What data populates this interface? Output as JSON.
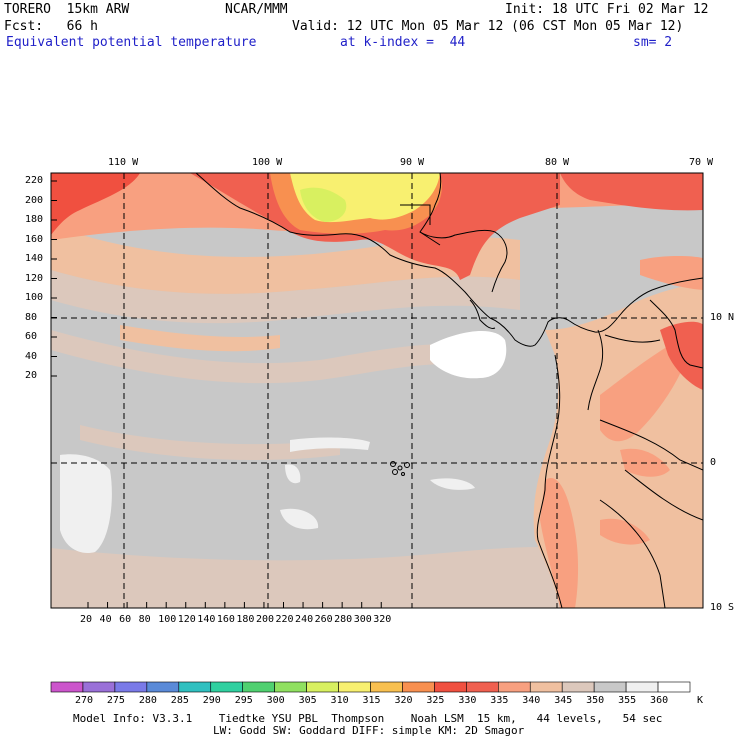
{
  "header": {
    "model": "TORERO  15km ARW",
    "org": "NCAR/MMM",
    "init": "Init: 18 UTC Fri 02 Mar 12",
    "fcst": "Fcst:   66 h",
    "valid": "Valid: 12 UTC Mon 05 Mar 12 (06 CST Mon 05 Mar 12)",
    "field": "Equivalent potential temperature",
    "level": "at k-index =  44",
    "smooth": "sm= 2"
  },
  "map": {
    "lon_labels": [
      "110 W",
      "100 W",
      "90 W",
      "80 W",
      "70 W"
    ],
    "lat_labels": [
      "10 N",
      "0",
      "10 S"
    ],
    "y_ticks": [
      "220",
      "200",
      "180",
      "160",
      "140",
      "120",
      "100",
      "80",
      "60",
      "40",
      "20"
    ],
    "x_ticks": [
      "20",
      "40",
      "60",
      "80",
      "100",
      "120",
      "140",
      "160",
      "180",
      "200",
      "220",
      "240",
      "260",
      "280",
      "300",
      "320"
    ]
  },
  "colorbar": {
    "labels": [
      "270",
      "275",
      "280",
      "285",
      "290",
      "295",
      "300",
      "305",
      "310",
      "315",
      "320",
      "325",
      "330",
      "335",
      "340",
      "345",
      "350",
      "355",
      "360"
    ],
    "unit": "K",
    "colors": [
      "#cc55cc",
      "#9a70d8",
      "#7a7ae8",
      "#5a8ad8",
      "#30c0c0",
      "#30d0a0",
      "#50d070",
      "#90e060",
      "#d8f060",
      "#f8f070",
      "#f8c050",
      "#f89050",
      "#f05040",
      "#f06050",
      "#f8a080",
      "#f0c0a0",
      "#dcc8bc",
      "#c8c8c8",
      "#f0f0f0",
      "#ffffff"
    ]
  },
  "footer": {
    "line1": "Model Info: V3.3.1    Tiedtke YSU PBL  Thompson    Noah LSM  15 km,   44 levels,   54 sec",
    "line2": "LW: Godd SW: Goddard DIFF: simple KM: 2D Smagor"
  }
}
